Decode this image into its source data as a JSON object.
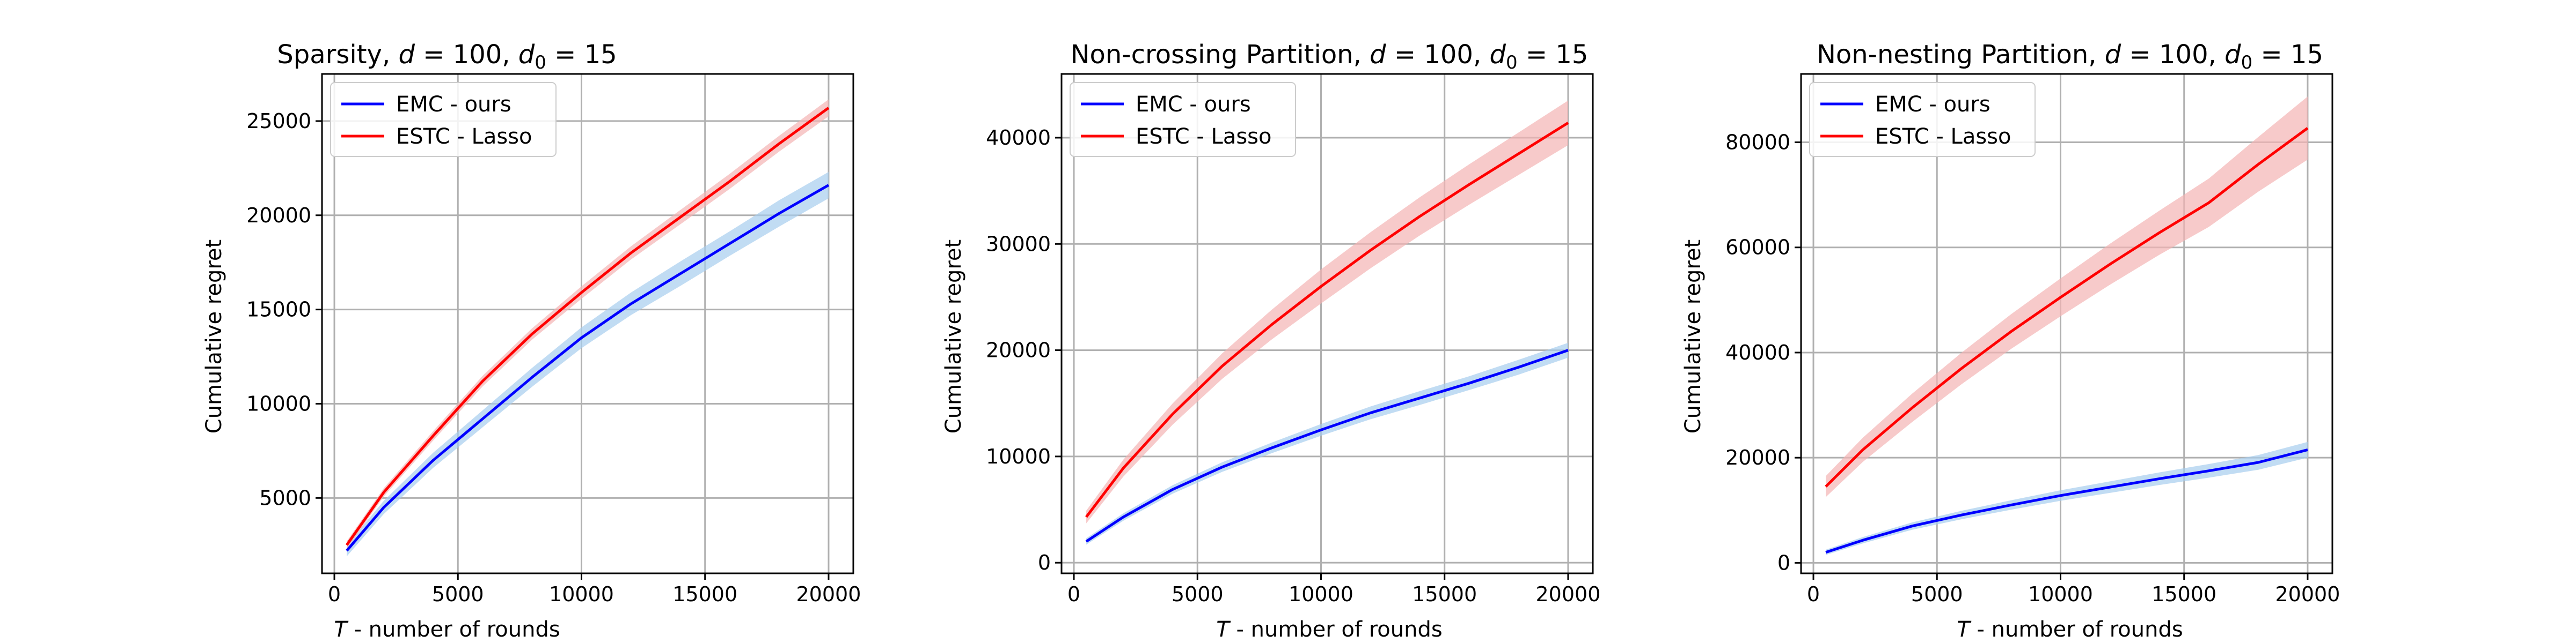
{
  "chart_data": [
    {
      "type": "line",
      "title": "Sparsity, d = 100,  d₀ = 15",
      "title_parts": {
        "prefix": "Sparsity, ",
        "d": "d",
        "d_value": " = 100,  ",
        "d0": "d",
        "sub": "0",
        "d0_value": " = 15"
      },
      "xlabel_parts": {
        "var": "T",
        "rest": " - number of rounds"
      },
      "xlabel": "T - number of rounds",
      "ylabel": "Cumulative regret",
      "xlim": [
        -500,
        21000
      ],
      "ylim": [
        1000,
        27500
      ],
      "xticks": [
        0,
        5000,
        10000,
        15000,
        20000
      ],
      "yticks": [
        5000,
        10000,
        15000,
        20000,
        25000
      ],
      "grid": true,
      "legend_position": "top-left",
      "series": [
        {
          "name": "EMC - ours",
          "color": "#0000ff",
          "band_color": "#a6cdee",
          "x": [
            500,
            2000,
            4000,
            6000,
            8000,
            10000,
            12000,
            14000,
            16000,
            18000,
            20000
          ],
          "y": [
            2200,
            4500,
            7000,
            9200,
            11400,
            13500,
            15300,
            16900,
            18500,
            20100,
            21600
          ],
          "band": [
            300,
            350,
            400,
            450,
            500,
            550,
            600,
            650,
            650,
            700,
            700
          ]
        },
        {
          "name": "ESTC - Lasso",
          "color": "#ff0000",
          "band_color": "#f4b4b4",
          "x": [
            500,
            2000,
            4000,
            6000,
            8000,
            10000,
            12000,
            14000,
            16000,
            18000,
            20000
          ],
          "y": [
            2500,
            5300,
            8300,
            11200,
            13700,
            15900,
            18000,
            19900,
            21800,
            23800,
            25700
          ],
          "band": [
            200,
            220,
            250,
            280,
            300,
            330,
            350,
            380,
            400,
            420,
            450
          ]
        }
      ]
    },
    {
      "type": "line",
      "title": "Non-crossing Partition, d = 100,  d₀ = 15",
      "title_parts": {
        "prefix": "Non-crossing Partition, ",
        "d": "d",
        "d_value": " = 100,  ",
        "d0": "d",
        "sub": "0",
        "d0_value": " = 15"
      },
      "xlabel_parts": {
        "var": "T",
        "rest": " - number of rounds"
      },
      "xlabel": "T - number of rounds",
      "ylabel": "Cumulative regret",
      "xlim": [
        -500,
        21000
      ],
      "ylim": [
        -1000,
        46000
      ],
      "xticks": [
        0,
        5000,
        10000,
        15000,
        20000
      ],
      "yticks": [
        0,
        10000,
        20000,
        30000,
        40000
      ],
      "grid": true,
      "legend_position": "top-left",
      "series": [
        {
          "name": "EMC - ours",
          "color": "#0000ff",
          "band_color": "#a6cdee",
          "x": [
            500,
            2000,
            4000,
            6000,
            8000,
            10000,
            12000,
            14000,
            16000,
            18000,
            20000
          ],
          "y": [
            2000,
            4300,
            6900,
            9000,
            10800,
            12500,
            14100,
            15500,
            16900,
            18400,
            20000
          ],
          "band": [
            300,
            350,
            400,
            450,
            500,
            550,
            600,
            650,
            650,
            700,
            700
          ]
        },
        {
          "name": "ESTC - Lasso",
          "color": "#ff0000",
          "band_color": "#f4b4b4",
          "x": [
            500,
            2000,
            4000,
            6000,
            8000,
            10000,
            12000,
            14000,
            16000,
            18000,
            20000
          ],
          "y": [
            4300,
            8900,
            14000,
            18500,
            22400,
            26000,
            29400,
            32600,
            35600,
            38500,
            41400
          ],
          "band": [
            600,
            800,
            1000,
            1200,
            1400,
            1600,
            1700,
            1800,
            1900,
            2000,
            2100
          ]
        }
      ]
    },
    {
      "type": "line",
      "title": "Non-nesting Partition, d = 100,  d₀ = 15",
      "title_parts": {
        "prefix": "Non-nesting Partition, ",
        "d": "d",
        "d_value": " = 100,  ",
        "d0": "d",
        "sub": "0",
        "d0_value": " = 15"
      },
      "xlabel_parts": {
        "var": "T",
        "rest": " - number of rounds"
      },
      "xlabel": "T - number of rounds",
      "ylabel": "Cumulative regret",
      "xlim": [
        -500,
        21000
      ],
      "ylim": [
        -2000,
        93000
      ],
      "xticks": [
        0,
        5000,
        10000,
        15000,
        20000
      ],
      "yticks": [
        0,
        20000,
        40000,
        60000,
        80000
      ],
      "grid": true,
      "legend_position": "top-left",
      "series": [
        {
          "name": "EMC - ours",
          "color": "#0000ff",
          "band_color": "#a6cdee",
          "x": [
            500,
            2000,
            4000,
            6000,
            8000,
            10000,
            12000,
            14000,
            16000,
            18000,
            20000
          ],
          "y": [
            2000,
            4300,
            7000,
            9100,
            11000,
            12800,
            14400,
            16000,
            17500,
            19100,
            21500
          ],
          "band": [
            500,
            600,
            700,
            800,
            900,
            1000,
            1100,
            1200,
            1300,
            1400,
            1500
          ]
        },
        {
          "name": "ESTC - Lasso",
          "color": "#ff0000",
          "band_color": "#f4b4b4",
          "x": [
            500,
            2000,
            4000,
            6000,
            8000,
            10000,
            12000,
            14000,
            16000,
            18000,
            20000
          ],
          "y": [
            14500,
            21500,
            29500,
            37000,
            44000,
            50500,
            56800,
            62800,
            68500,
            75800,
            82700
          ],
          "band": [
            2000,
            2300,
            2700,
            3000,
            3300,
            3600,
            3900,
            4200,
            4600,
            5200,
            6000
          ]
        }
      ]
    }
  ]
}
